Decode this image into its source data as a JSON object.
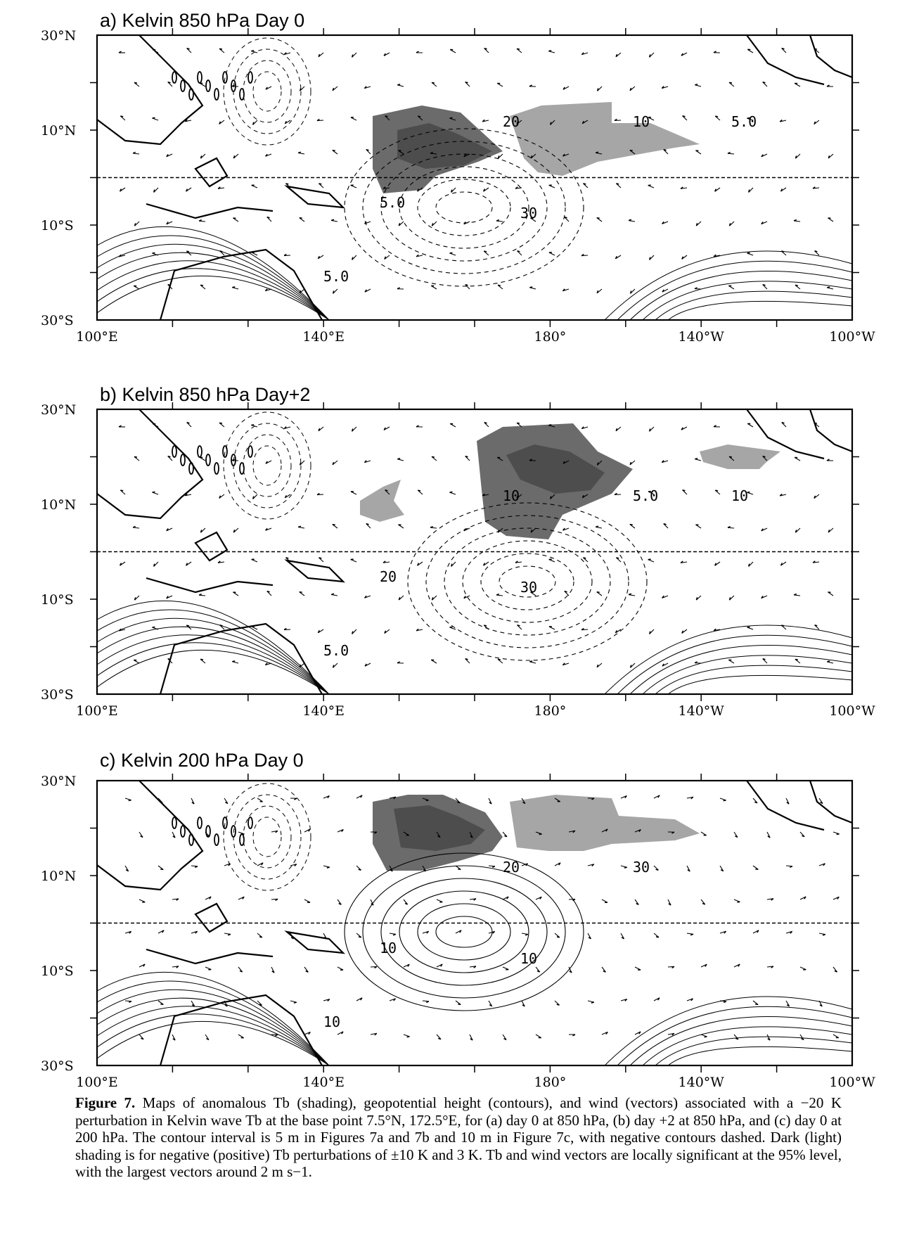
{
  "figure": {
    "panels": [
      {
        "title": "a) Kelvin 850 hPa Day 0",
        "contour_labels": [
          "20",
          "10",
          "30",
          "5.0",
          "5.0",
          "5.0"
        ]
      },
      {
        "title": "b) Kelvin 850 hPa Day+2",
        "contour_labels": [
          "10",
          "5.0",
          "30",
          "20",
          "5.0",
          "10"
        ]
      },
      {
        "title": "c) Kelvin 200 hPa Day 0",
        "contour_labels": [
          "20",
          "30",
          "10",
          "10",
          "10"
        ]
      }
    ],
    "lat_labels": [
      "30°N",
      "10°N",
      "10°S",
      "30°S"
    ],
    "lon_labels": [
      "100°E",
      "140°E",
      "180°",
      "140°W",
      "100°W"
    ]
  },
  "caption": {
    "label": "Figure 7.",
    "text": "Maps of anomalous Tb (shading), geopotential height (contours), and wind (vectors) associated with a −20 K perturbation in Kelvin wave Tb at the base point 7.5°N, 172.5°E, for (a) day 0 at 850 hPa, (b) day +2 at 850 hPa, and (c) day 0 at 200 hPa. The contour interval is 5 m in Figures 7a and 7b and 10 m in Figure 7c, with negative contours dashed. Dark (light) shading is for negative (positive) Tb perturbations of ±10 K and 3 K. Tb and wind vectors are locally significant at the 95% level, with the largest vectors around 2 m s−1."
  },
  "colors": {
    "dark_shading": "#4d4d4d",
    "light_shading": "#a6a6a6",
    "frame": "#000000"
  }
}
